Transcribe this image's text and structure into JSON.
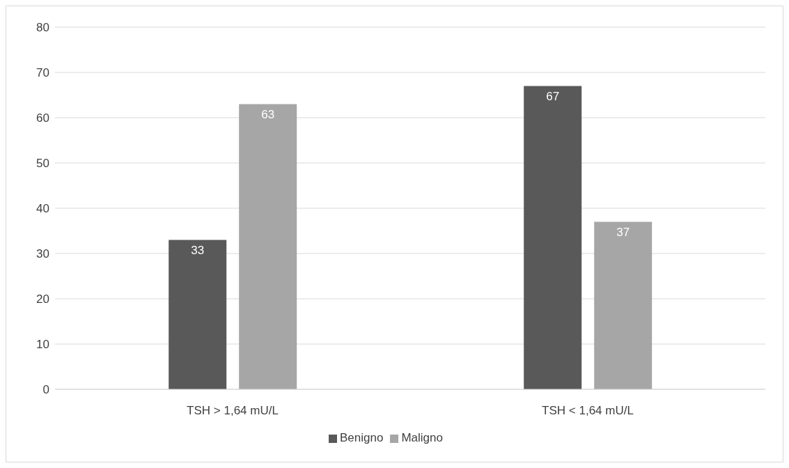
{
  "chart_data": {
    "type": "bar",
    "categories": [
      "TSH > 1,64 mU/L",
      "TSH < 1,64 mU/L"
    ],
    "series": [
      {
        "name": "Benigno",
        "color": "#595959",
        "values": [
          33,
          67
        ]
      },
      {
        "name": "Maligno",
        "color": "#a6a6a6",
        "values": [
          63,
          37
        ]
      }
    ],
    "ylim": [
      0,
      80
    ],
    "yticks": [
      0,
      10,
      20,
      30,
      40,
      50,
      60,
      70,
      80
    ],
    "grid": "y",
    "legend": "bottom",
    "data_labels": true
  }
}
